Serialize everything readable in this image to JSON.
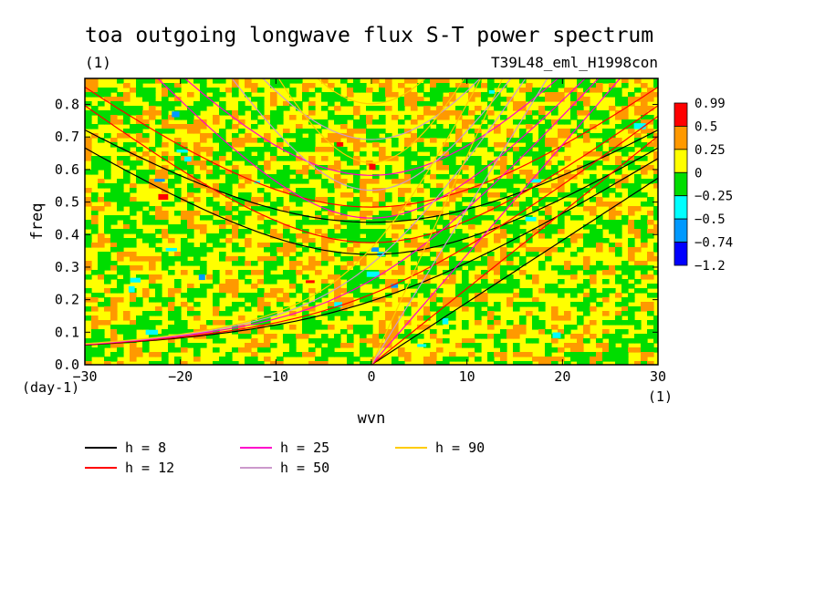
{
  "chart_data": {
    "type": "heatmap",
    "title": "toa outgoing longwave flux S-T power spectrum",
    "subtitle_left": "(1)",
    "subtitle_right": "T39L48_eml_H1998con",
    "xlabel": "wvn",
    "ylabel": "freq",
    "x_unit": "(1)",
    "y_unit": "(day-1)",
    "xlim": [
      -30,
      30
    ],
    "ylim": [
      0,
      0.88
    ],
    "x_ticks": [
      -30,
      -20,
      -10,
      0,
      10,
      20,
      30
    ],
    "x_tick_labels": [
      "−30",
      "−20",
      "−10",
      "0",
      "10",
      "20",
      "30"
    ],
    "y_ticks": [
      0,
      0.1,
      0.2,
      0.3,
      0.4,
      0.5,
      0.6,
      0.7,
      0.8
    ],
    "y_tick_labels": [
      "0.0",
      "0.1",
      "0.2",
      "0.3",
      "0.4",
      "0.5",
      "0.6",
      "0.7",
      "0.8"
    ],
    "colorbar": {
      "levels": [
        "0.99",
        "0.5",
        "0.25",
        "0",
        "−0.25",
        "−0.5",
        "−0.74",
        "−1.2"
      ],
      "colors": [
        "#ff0000",
        "#ff9900",
        "#ffff00",
        "#00dd00",
        "#00ffff",
        "#0099ff",
        "#0000ff"
      ]
    },
    "field_summary": "noisy field dominated by yellow (0 to 0.25) and green (-0.25 to 0) patches with scattered orange (0.25 to 0.5) spots and rare cyan/blue/red specks",
    "dispersion_curves": [
      {
        "h": 8,
        "label": "h =  8",
        "color": "#000000"
      },
      {
        "h": 12,
        "label": "h = 12",
        "color": "#ff0000"
      },
      {
        "h": 25,
        "label": "h = 25",
        "color": "#ff00cc"
      },
      {
        "h": 50,
        "label": "h = 50",
        "color": "#cc99cc"
      },
      {
        "h": 90,
        "label": "h = 90",
        "color": "#ffcc00"
      }
    ]
  }
}
